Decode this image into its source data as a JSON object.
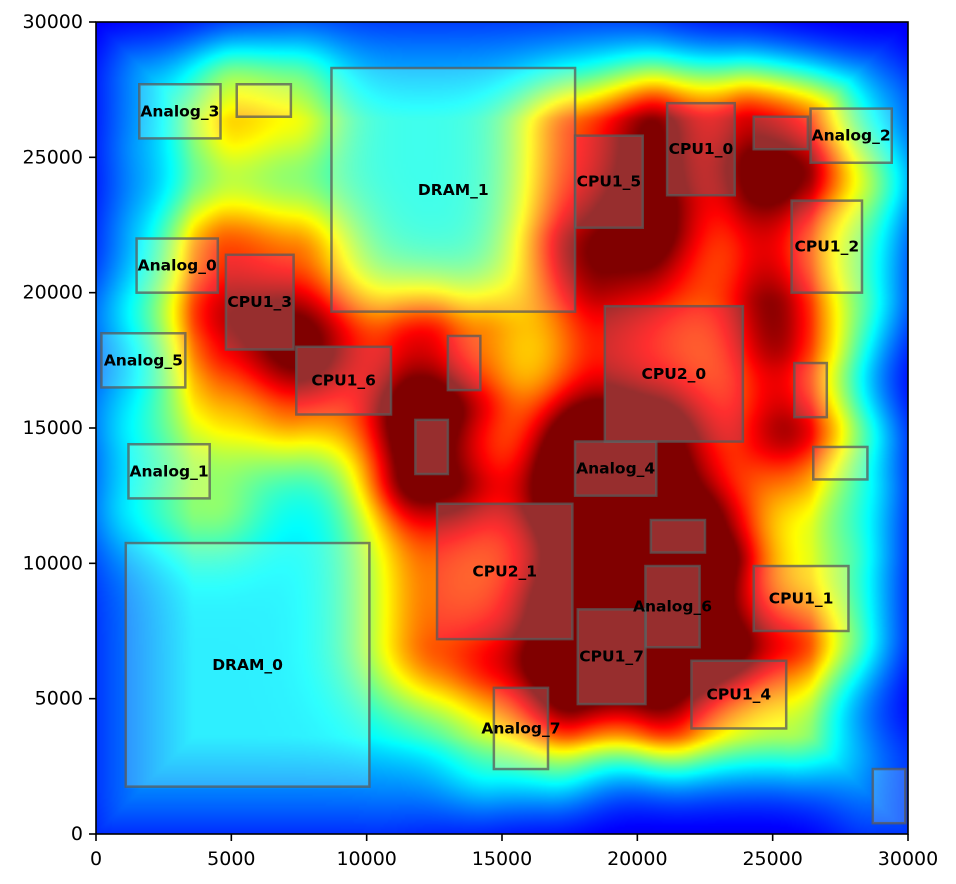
{
  "chart_data": {
    "type": "heatmap",
    "title": "",
    "xlabel": "",
    "ylabel": "",
    "xlim": [
      0,
      30000
    ],
    "ylim": [
      0,
      30000
    ],
    "xticks": [
      0,
      5000,
      10000,
      15000,
      20000,
      25000,
      30000
    ],
    "yticks": [
      0,
      5000,
      10000,
      15000,
      20000,
      25000,
      30000
    ],
    "colormap": "jet",
    "grid": false,
    "blocks": [
      {
        "name": "DRAM_0",
        "x0": 1100,
        "y0": 1750,
        "x1": 10100,
        "y1": 10750,
        "intensity": 0.33
      },
      {
        "name": "DRAM_1",
        "x0": 8700,
        "y0": 19300,
        "x1": 17700,
        "y1": 28300,
        "intensity": 0.4
      },
      {
        "name": "CPU2_1",
        "x0": 12600,
        "y0": 7200,
        "x1": 17600,
        "y1": 12200,
        "intensity": 0.98
      },
      {
        "name": "CPU2_0",
        "x0": 18800,
        "y0": 14500,
        "x1": 23900,
        "y1": 19500,
        "intensity": 1.0
      },
      {
        "name": "CPU1_0",
        "x0": 21100,
        "y0": 23600,
        "x1": 23600,
        "y1": 27000,
        "intensity": 0.78
      },
      {
        "name": "CPU1_1",
        "x0": 24300,
        "y0": 7500,
        "x1": 27800,
        "y1": 9900,
        "intensity": 0.74
      },
      {
        "name": "CPU1_2",
        "x0": 25700,
        "y0": 20000,
        "x1": 28300,
        "y1": 23400,
        "intensity": 0.76
      },
      {
        "name": "CPU1_3",
        "x0": 4800,
        "y0": 17900,
        "x1": 7300,
        "y1": 21400,
        "intensity": 0.75
      },
      {
        "name": "CPU1_4",
        "x0": 22000,
        "y0": 3900,
        "x1": 25500,
        "y1": 6400,
        "intensity": 0.72
      },
      {
        "name": "CPU1_5",
        "x0": 17700,
        "y0": 22400,
        "x1": 20200,
        "y1": 25800,
        "intensity": 0.82
      },
      {
        "name": "CPU1_6",
        "x0": 7400,
        "y0": 15500,
        "x1": 10900,
        "y1": 18000,
        "intensity": 0.74
      },
      {
        "name": "CPU1_7",
        "x0": 17800,
        "y0": 4800,
        "x1": 20300,
        "y1": 8300,
        "intensity": 0.88
      },
      {
        "name": "Analog_0",
        "x0": 1500,
        "y0": 20000,
        "x1": 4500,
        "y1": 22000,
        "intensity": 0.4
      },
      {
        "name": "Analog_1",
        "x0": 1200,
        "y0": 12400,
        "x1": 4200,
        "y1": 14400,
        "intensity": 0.42
      },
      {
        "name": "Analog_2",
        "x0": 26400,
        "y0": 24800,
        "x1": 29400,
        "y1": 26800,
        "intensity": 0.45
      },
      {
        "name": "Analog_3",
        "x0": 1600,
        "y0": 25700,
        "x1": 4600,
        "y1": 27700,
        "intensity": 0.38
      },
      {
        "name": "Analog_4",
        "x0": 17700,
        "y0": 12500,
        "x1": 20700,
        "y1": 14500,
        "intensity": 0.7
      },
      {
        "name": "Analog_5",
        "x0": 200,
        "y0": 16500,
        "x1": 3300,
        "y1": 18500,
        "intensity": 0.35
      },
      {
        "name": "Analog_6",
        "x0": 20300,
        "y0": 6900,
        "x1": 22300,
        "y1": 9900,
        "intensity": 0.62
      },
      {
        "name": "Analog_7",
        "x0": 14700,
        "y0": 2400,
        "x1": 16700,
        "y1": 5400,
        "intensity": 0.48
      },
      {
        "name": "",
        "x0": 5200,
        "y0": 26500,
        "x1": 7200,
        "y1": 27700,
        "intensity": 0.5
      },
      {
        "name": "",
        "x0": 24300,
        "y0": 25300,
        "x1": 26300,
        "y1": 26500,
        "intensity": 0.52
      },
      {
        "name": "",
        "x0": 13000,
        "y0": 16400,
        "x1": 14200,
        "y1": 18400,
        "intensity": 0.62
      },
      {
        "name": "",
        "x0": 11800,
        "y0": 13300,
        "x1": 13000,
        "y1": 15300,
        "intensity": 0.62
      },
      {
        "name": "",
        "x0": 20500,
        "y0": 10400,
        "x1": 22500,
        "y1": 11600,
        "intensity": 0.62
      },
      {
        "name": "",
        "x0": 25800,
        "y0": 15400,
        "x1": 27000,
        "y1": 17400,
        "intensity": 0.58
      },
      {
        "name": "",
        "x0": 26500,
        "y0": 13100,
        "x1": 28500,
        "y1": 14300,
        "intensity": 0.52
      },
      {
        "name": "",
        "x0": 28700,
        "y0": 400,
        "x1": 29900,
        "y1": 2400,
        "intensity": 0.3
      }
    ]
  }
}
